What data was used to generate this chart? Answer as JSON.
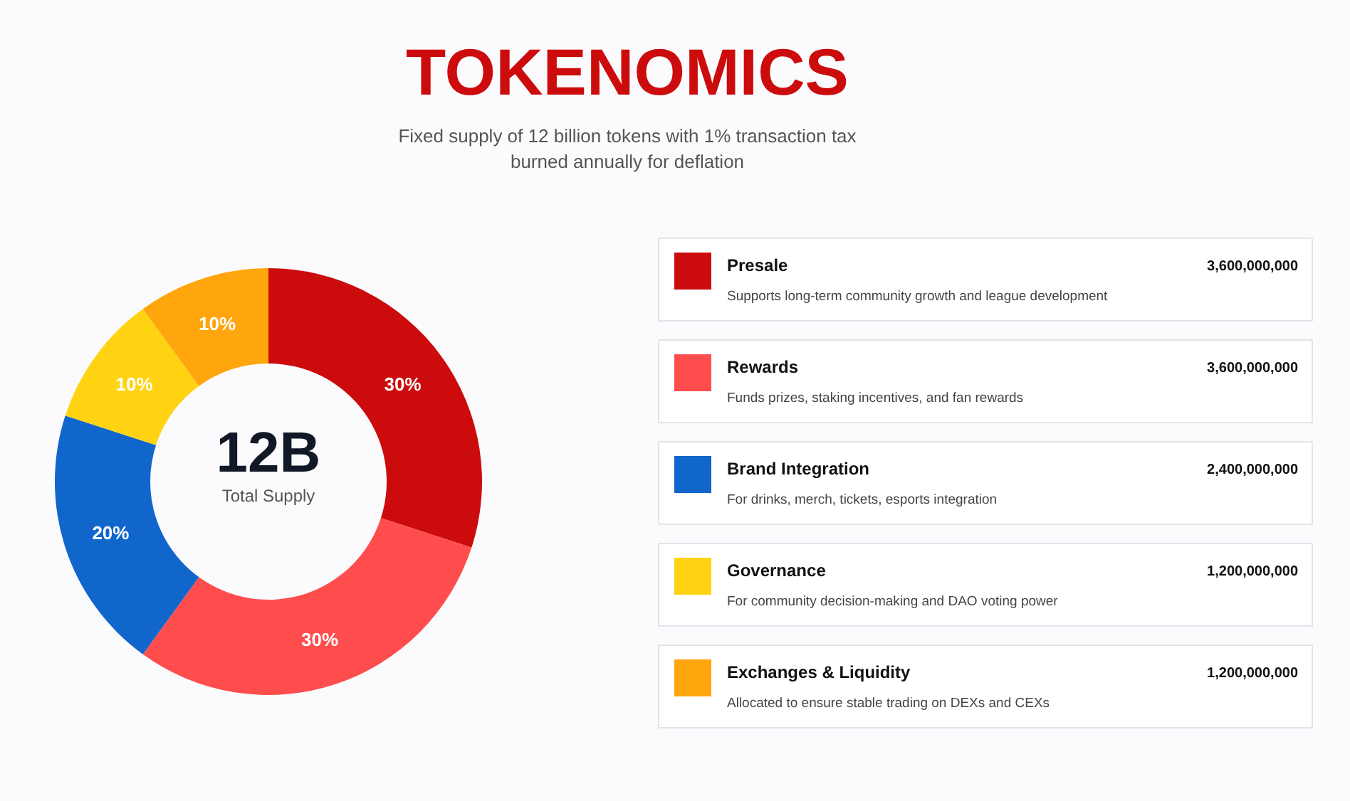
{
  "chart_data": {
    "type": "donut",
    "title": "TOKENOMICS",
    "subtitle": "Fixed supply of 12 billion tokens with 1% transaction tax burned annually for deflation",
    "categories": [
      "Presale",
      "Rewards",
      "Brand Integration",
      "Governance",
      "Exchanges & Liquidity"
    ],
    "values": [
      30,
      30,
      20,
      10,
      10
    ],
    "colors": [
      "#cc0c0c",
      "#ff4d4d",
      "#1166cc",
      "#ffd311",
      "#ffa50d"
    ],
    "value_labels": [
      "30%",
      "30%",
      "20%",
      "10%",
      "10%"
    ],
    "legend": "right",
    "annotations": [
      "12B",
      "Total Supply",
      "3,600,000,000",
      "Supports long-term community growth and league development",
      "3,600,000,000",
      "Funds prizes, staking incentives, and fan rewards",
      "2,400,000,000",
      "For drinks, merch, tickets, esports integration",
      "1,200,000,000",
      "For community decision-making and DAO voting power",
      "1,200,000,000",
      "Allocated to ensure stable trading on DEXs and CEXs"
    ]
  }
}
